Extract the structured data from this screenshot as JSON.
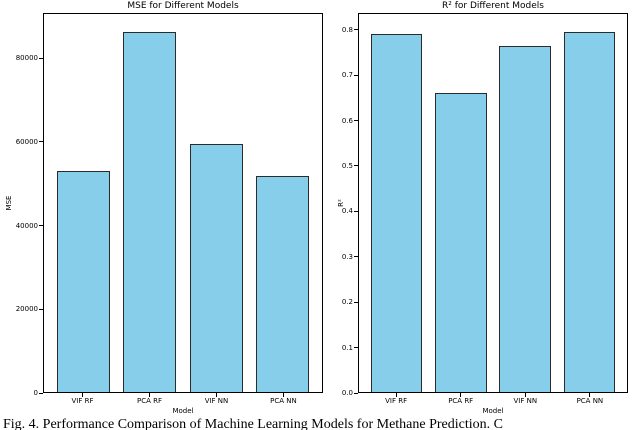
{
  "figure": {
    "caption": "Fig. 4. Performance Comparison of Machine Learning Models for Methane Prediction. C"
  },
  "chart_data": [
    {
      "type": "bar",
      "title": "MSE for Different Models",
      "xlabel": "Model",
      "ylabel": "MSE",
      "categories": [
        "VIF RF",
        "PCA RF",
        "VIF NN",
        "PCA NN"
      ],
      "values": [
        53000,
        86500,
        59500,
        52000
      ],
      "ylim": [
        0,
        90825
      ],
      "yticks": [
        0,
        20000,
        40000,
        60000,
        80000
      ],
      "ytick_labels": [
        "0",
        "20000",
        "40000",
        "60000",
        "80000"
      ],
      "grid": false,
      "legend": "none",
      "bar_color": "#87CEEB",
      "bar_edge_color": "#2b2b2b"
    },
    {
      "type": "bar",
      "title": "R² for Different Models",
      "xlabel": "Model",
      "ylabel": "R²",
      "categories": [
        "VIF RF",
        "PCA RF",
        "VIF NN",
        "PCA NN"
      ],
      "values": [
        0.793,
        0.662,
        0.767,
        0.797
      ],
      "ylim": [
        0,
        0.8369
      ],
      "yticks": [
        0.0,
        0.1,
        0.2,
        0.3,
        0.4,
        0.5,
        0.6,
        0.7,
        0.8
      ],
      "ytick_labels": [
        "0.0",
        "0.1",
        "0.2",
        "0.3",
        "0.4",
        "0.5",
        "0.6",
        "0.7",
        "0.8"
      ],
      "grid": false,
      "legend": "none",
      "bar_color": "#87CEEB",
      "bar_edge_color": "#2b2b2b"
    }
  ]
}
